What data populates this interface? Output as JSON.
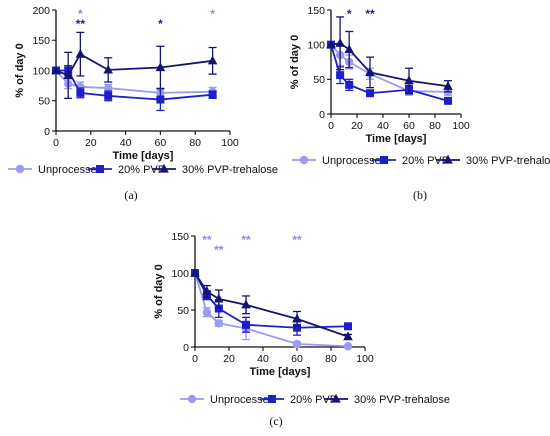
{
  "colors": {
    "unprocessed": "#9b9bf0",
    "pvp20": "#1f1fc8",
    "pvp30": "#141472",
    "sig_light": "#8a8aee",
    "sig_dark": "#20209a"
  },
  "legend": [
    "Unprocessed",
    "20% PVP",
    "30% PVP-trehalose"
  ],
  "chart_data": [
    {
      "type": "line",
      "panel_label": "(a)",
      "xlabel": "Time [days]",
      "ylabel": "% of day 0",
      "xlim": [
        0,
        100
      ],
      "ylim": [
        0,
        200
      ],
      "xticks": [
        "0",
        "20",
        "40",
        "60",
        "80",
        "100"
      ],
      "yticks": [
        "0",
        "50",
        "100",
        "150",
        "200"
      ],
      "x": [
        0,
        7,
        14,
        30,
        60,
        90
      ],
      "series": [
        {
          "name": "Unprocessed",
          "values": [
            100,
            78,
            73,
            71,
            63,
            65
          ],
          "err": [
            0,
            8,
            8,
            6,
            8,
            7
          ]
        },
        {
          "name": "20% PVP",
          "values": [
            100,
            100,
            63,
            58,
            52,
            60
          ],
          "err": [
            0,
            8,
            8,
            8,
            18,
            6
          ]
        },
        {
          "name": "30% PVP-trehalose",
          "values": [
            100,
            92,
            127,
            101,
            105,
            116
          ],
          "err": [
            0,
            38,
            36,
            20,
            35,
            22
          ]
        }
      ],
      "annotations": [
        {
          "x": 14,
          "text": "*",
          "series": "Unprocessed",
          "row": 0
        },
        {
          "x": 14,
          "text": "**",
          "series": "20% PVP",
          "row": 1
        },
        {
          "x": 60,
          "text": "*",
          "series": "20% PVP",
          "row": 1
        },
        {
          "x": 90,
          "text": "*",
          "series": "Unprocessed",
          "row": 0
        }
      ]
    },
    {
      "type": "line",
      "panel_label": "(b)",
      "xlabel": "Time [days]",
      "ylabel": "% of day 0",
      "xlim": [
        0,
        100
      ],
      "ylim": [
        0,
        150
      ],
      "xticks": [
        "0",
        "20",
        "40",
        "60",
        "80",
        "100"
      ],
      "yticks": [
        "0",
        "50",
        "100",
        "150"
      ],
      "x": [
        0,
        7,
        14,
        30,
        60,
        90
      ],
      "series": [
        {
          "name": "Unprocessed",
          "values": [
            100,
            85,
            75,
            58,
            33,
            32
          ],
          "err": [
            0,
            15,
            10,
            8,
            6,
            5
          ]
        },
        {
          "name": "20% PVP",
          "values": [
            100,
            56,
            42,
            30,
            35,
            19
          ],
          "err": [
            0,
            12,
            8,
            4,
            6,
            3
          ]
        },
        {
          "name": "30% PVP-trehalose",
          "values": [
            100,
            102,
            93,
            60,
            48,
            40
          ],
          "err": [
            0,
            38,
            26,
            22,
            18,
            8
          ]
        }
      ],
      "annotations": [
        {
          "x": 14,
          "text": "*",
          "series": "20% PVP",
          "row": 0
        },
        {
          "x": 30,
          "text": "**",
          "series": "20% PVP",
          "row": 0
        }
      ]
    },
    {
      "type": "line",
      "panel_label": "(c)",
      "xlabel": "Time [days]",
      "ylabel": "% of day 0",
      "xlim": [
        0,
        100
      ],
      "ylim": [
        0,
        150
      ],
      "xticks": [
        "0",
        "20",
        "40",
        "60",
        "80",
        "100"
      ],
      "yticks": [
        "0",
        "50",
        "100",
        "150"
      ],
      "x": [
        0,
        7,
        14,
        30,
        60,
        90
      ],
      "series": [
        {
          "name": "Unprocessed",
          "values": [
            100,
            47,
            32,
            25,
            4,
            1
          ],
          "err": [
            0,
            6,
            4,
            15,
            3,
            1
          ]
        },
        {
          "name": "20% PVP",
          "values": [
            100,
            70,
            52,
            30,
            26,
            28
          ],
          "err": [
            0,
            6,
            12,
            10,
            10,
            3
          ]
        },
        {
          "name": "30% PVP-trehalose",
          "values": [
            100,
            75,
            65,
            57,
            38,
            14
          ],
          "err": [
            0,
            8,
            12,
            12,
            10,
            3
          ]
        }
      ],
      "annotations": [
        {
          "x": 7,
          "text": "**",
          "series": "Unprocessed",
          "row": 0
        },
        {
          "x": 14,
          "text": "**",
          "series": "Unprocessed",
          "row": 1
        },
        {
          "x": 30,
          "text": "**",
          "series": "Unprocessed",
          "row": 0
        },
        {
          "x": 60,
          "text": "**",
          "series": "Unprocessed",
          "row": 0
        }
      ]
    }
  ]
}
